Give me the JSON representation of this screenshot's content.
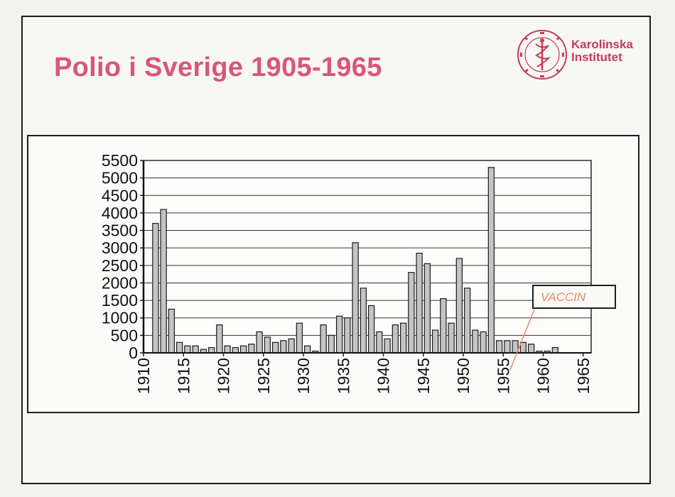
{
  "slide": {
    "title": "Polio i Sverige 1905-1965",
    "logo": {
      "name_line1": "Karolinska",
      "name_line2": "Institutet",
      "icon": "karolinska-seal-icon",
      "color": "#c83a5c"
    },
    "title_color": "#d8567a"
  },
  "annotation": {
    "text": "VACCIN",
    "color": "#e8876a",
    "points_to_year": 1955
  },
  "chart_data": {
    "type": "bar",
    "title": "",
    "xlabel": "",
    "ylabel": "",
    "x": [
      1910,
      1911,
      1912,
      1913,
      1914,
      1915,
      1916,
      1917,
      1918,
      1919,
      1920,
      1921,
      1922,
      1923,
      1924,
      1925,
      1926,
      1927,
      1928,
      1929,
      1930,
      1931,
      1932,
      1933,
      1934,
      1935,
      1936,
      1937,
      1938,
      1939,
      1940,
      1941,
      1942,
      1943,
      1944,
      1945,
      1946,
      1947,
      1948,
      1949,
      1950,
      1951,
      1952,
      1953,
      1954,
      1955,
      1956,
      1957,
      1958,
      1959,
      1960,
      1961,
      1962,
      1963,
      1964,
      1965
    ],
    "values": [
      0,
      3700,
      4100,
      1250,
      300,
      200,
      200,
      100,
      150,
      800,
      200,
      150,
      200,
      250,
      600,
      450,
      300,
      350,
      400,
      850,
      200,
      50,
      800,
      500,
      1050,
      1000,
      3150,
      1850,
      1350,
      600,
      400,
      800,
      850,
      2300,
      2850,
      2550,
      650,
      1550,
      850,
      2700,
      1850,
      650,
      600,
      5300,
      350,
      350,
      350,
      300,
      250,
      50,
      50,
      150,
      0,
      0,
      0,
      0
    ],
    "xticks": [
      1910,
      1915,
      1920,
      1925,
      1930,
      1935,
      1940,
      1945,
      1950,
      1955,
      1960,
      1965
    ],
    "yticks": [
      0,
      500,
      1000,
      1500,
      2000,
      2500,
      3000,
      3500,
      4000,
      4500,
      5000,
      5500
    ],
    "ylim": [
      0,
      5500
    ],
    "xlim": [
      1910,
      1965
    ],
    "grid": true,
    "legend": "none",
    "bar_color": "#c4c4c4"
  }
}
